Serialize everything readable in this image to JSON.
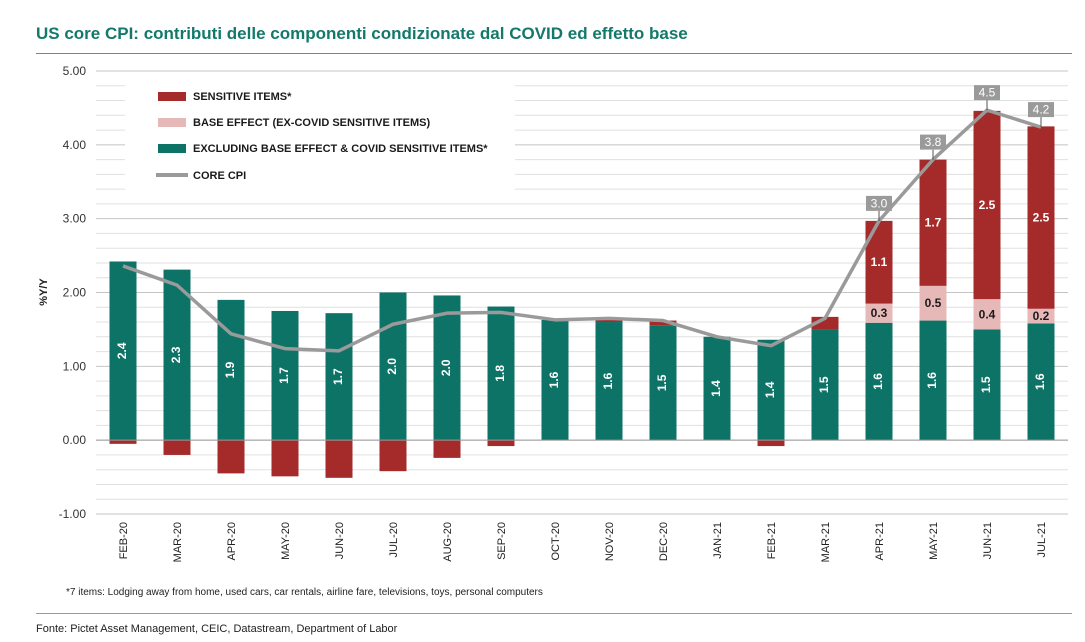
{
  "title": "US core CPI: contributi delle componenti condizionate dal COVID ed effetto base",
  "footnote": "*7 items: Lodging away from home, used cars, car rentals, airline fare, televisions,  toys, personal computers",
  "source": "Fonte: Pictet Asset Management, CEIC, Datastream, Department of Labor",
  "colors": {
    "title": "#137a6b",
    "sensitive": "#a52a2a",
    "base_effect": "#e6b8b8",
    "excluding": "#0e7367",
    "core_cpi": "#9a9a9a"
  },
  "chart_data": {
    "type": "bar",
    "stacked": true,
    "ylabel": "%Y/Y",
    "ylim": [
      -1.0,
      5.0
    ],
    "y_ticks": [
      -1.0,
      0.0,
      1.0,
      2.0,
      3.0,
      4.0,
      5.0
    ],
    "y_tick_labels": [
      "-1.00",
      "0.00",
      "1.00",
      "2.00",
      "3.00",
      "4.00",
      "5.00"
    ],
    "legend_position": "top-left",
    "categories": [
      "FEB-20",
      "MAR-20",
      "APR-20",
      "MAY-20",
      "JUN-20",
      "JUL-20",
      "AUG-20",
      "SEP-20",
      "OCT-20",
      "NOV-20",
      "DEC-20",
      "JAN-21",
      "FEB-21",
      "MAR-21",
      "APR-21",
      "MAY-21",
      "JUN-21",
      "JUL-21"
    ],
    "series": [
      {
        "name": "EXCLUDING BASE EFFECT & COVID SENSITIVE ITEMS*",
        "key": "excluding",
        "values": [
          2.42,
          2.31,
          1.9,
          1.75,
          1.72,
          2.0,
          1.96,
          1.81,
          1.63,
          1.6,
          1.55,
          1.4,
          1.36,
          1.5,
          1.59,
          1.62,
          1.5,
          1.58
        ],
        "labels": [
          "2.4",
          "2.3",
          "1.9",
          "1.7",
          "1.7",
          "2.0",
          "2.0",
          "1.8",
          "1.6",
          "1.6",
          "1.5",
          "1.4",
          "1.4",
          "1.5",
          "1.6",
          "1.6",
          "1.5",
          "1.6"
        ]
      },
      {
        "name": "BASE EFFECT (EX-COVID SENSITIVE ITEMS)",
        "key": "base_effect",
        "values": [
          0,
          0,
          0,
          0,
          0,
          0,
          0,
          0,
          0,
          0,
          0,
          0,
          0,
          0,
          0.26,
          0.47,
          0.41,
          0.2
        ],
        "labels": [
          "",
          "",
          "",
          "",
          "",
          "",
          "",
          "",
          "",
          "",
          "",
          "",
          "",
          "",
          "0.3",
          "0.5",
          "0.4",
          "0.2"
        ]
      },
      {
        "name": "SENSITIVE ITEMS*",
        "key": "sensitive",
        "values": [
          -0.05,
          -0.2,
          -0.45,
          -0.49,
          -0.51,
          -0.42,
          -0.24,
          -0.08,
          0.0,
          0.06,
          0.07,
          0.0,
          -0.08,
          0.17,
          1.12,
          1.71,
          2.55,
          2.47
        ],
        "labels": [
          "",
          "",
          "",
          "",
          "",
          "",
          "",
          "",
          "",
          "",
          "",
          "",
          "",
          "",
          "1.1",
          "1.7",
          "2.5",
          "2.5"
        ]
      }
    ],
    "line": {
      "name": "CORE CPI",
      "values": [
        2.36,
        2.1,
        1.44,
        1.24,
        1.21,
        1.57,
        1.72,
        1.73,
        1.63,
        1.65,
        1.62,
        1.4,
        1.28,
        1.65,
        2.97,
        3.8,
        4.47,
        4.24
      ],
      "labels": [
        "",
        "",
        "",
        "",
        "",
        "",
        "",
        "",
        "",
        "",
        "",
        "",
        "",
        "",
        "3.0",
        "3.8",
        "4.5",
        "4.2"
      ]
    }
  }
}
